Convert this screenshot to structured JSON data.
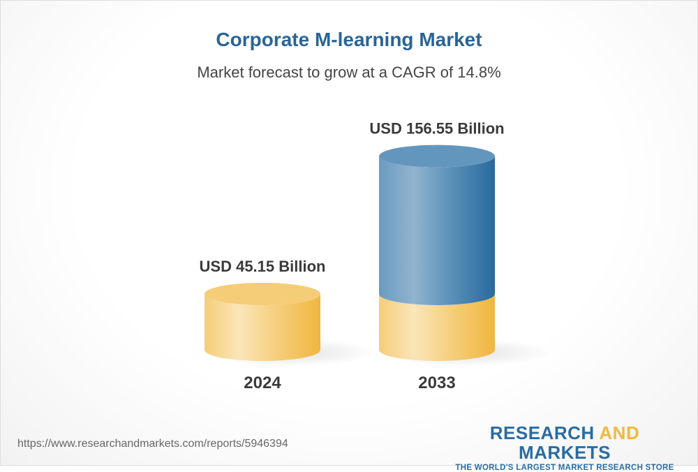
{
  "chart_data": {
    "type": "bar",
    "style": "3d-cylinder",
    "title": "Corporate M-learning Market",
    "subtitle": "Market forecast to grow at a CAGR of 14.8%",
    "categories": [
      "2024",
      "2033"
    ],
    "values": [
      45.15,
      156.55
    ],
    "data_labels": [
      "USD 45.15 Billion",
      "USD 156.55 Billion"
    ],
    "unit": "USD Billion",
    "grid": false,
    "colors": {
      "base": "#f3c25a",
      "growth": "#2b6a9e",
      "title": "#2a6496"
    }
  },
  "footer": {
    "url": "https://www.researchandmarkets.com/reports/5946394",
    "logo_line1_a": "RESEARCH ",
    "logo_line1_b": "AND",
    "logo_line1_c": " MARKETS",
    "logo_line2": "THE WORLD'S LARGEST MARKET RESEARCH STORE"
  }
}
